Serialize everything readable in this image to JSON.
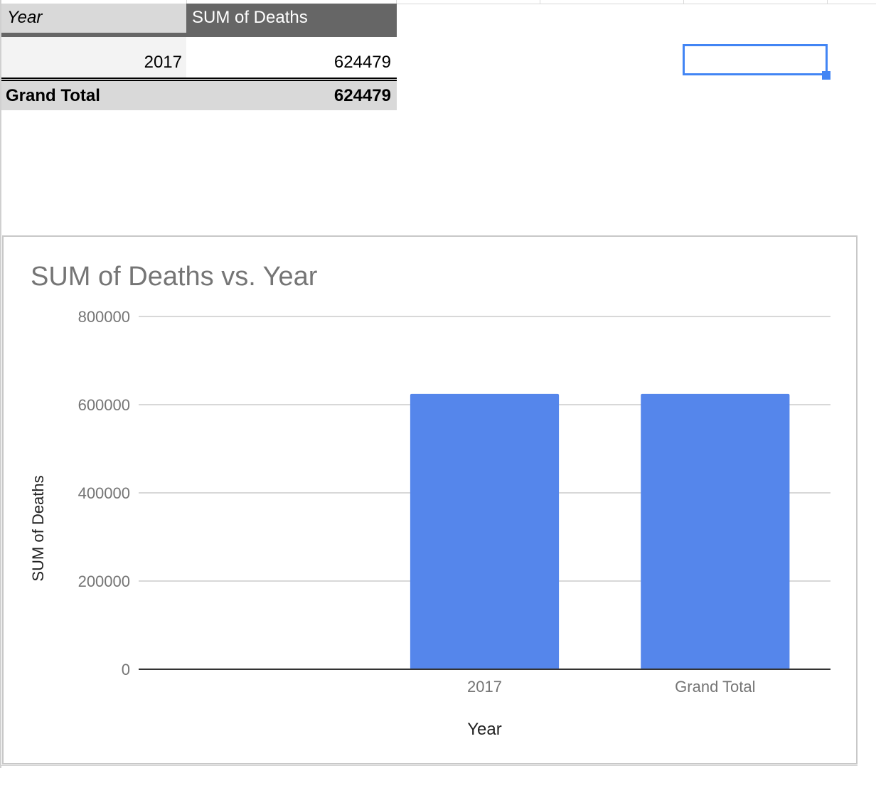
{
  "pivot": {
    "header": {
      "col1": "Year",
      "col2": "SUM of Deaths"
    },
    "rows": [
      {
        "year": "2017",
        "sum": "624479"
      }
    ],
    "total": {
      "label": "Grand Total",
      "sum": "624479"
    }
  },
  "colors": {
    "header_dark": "#666666",
    "header_light": "#d9d9d9",
    "bar": "#5586eb",
    "selection": "#4285f4"
  },
  "chart_data": {
    "type": "bar",
    "title": "SUM of Deaths vs. Year",
    "xlabel": "Year",
    "ylabel": "SUM of Deaths",
    "categories": [
      "",
      "2017",
      "Grand Total"
    ],
    "values": [
      null,
      624479,
      624479
    ],
    "ylim": [
      0,
      800000
    ],
    "yticks": [
      0,
      200000,
      400000,
      600000,
      800000
    ],
    "grid": true,
    "legend": "none"
  }
}
